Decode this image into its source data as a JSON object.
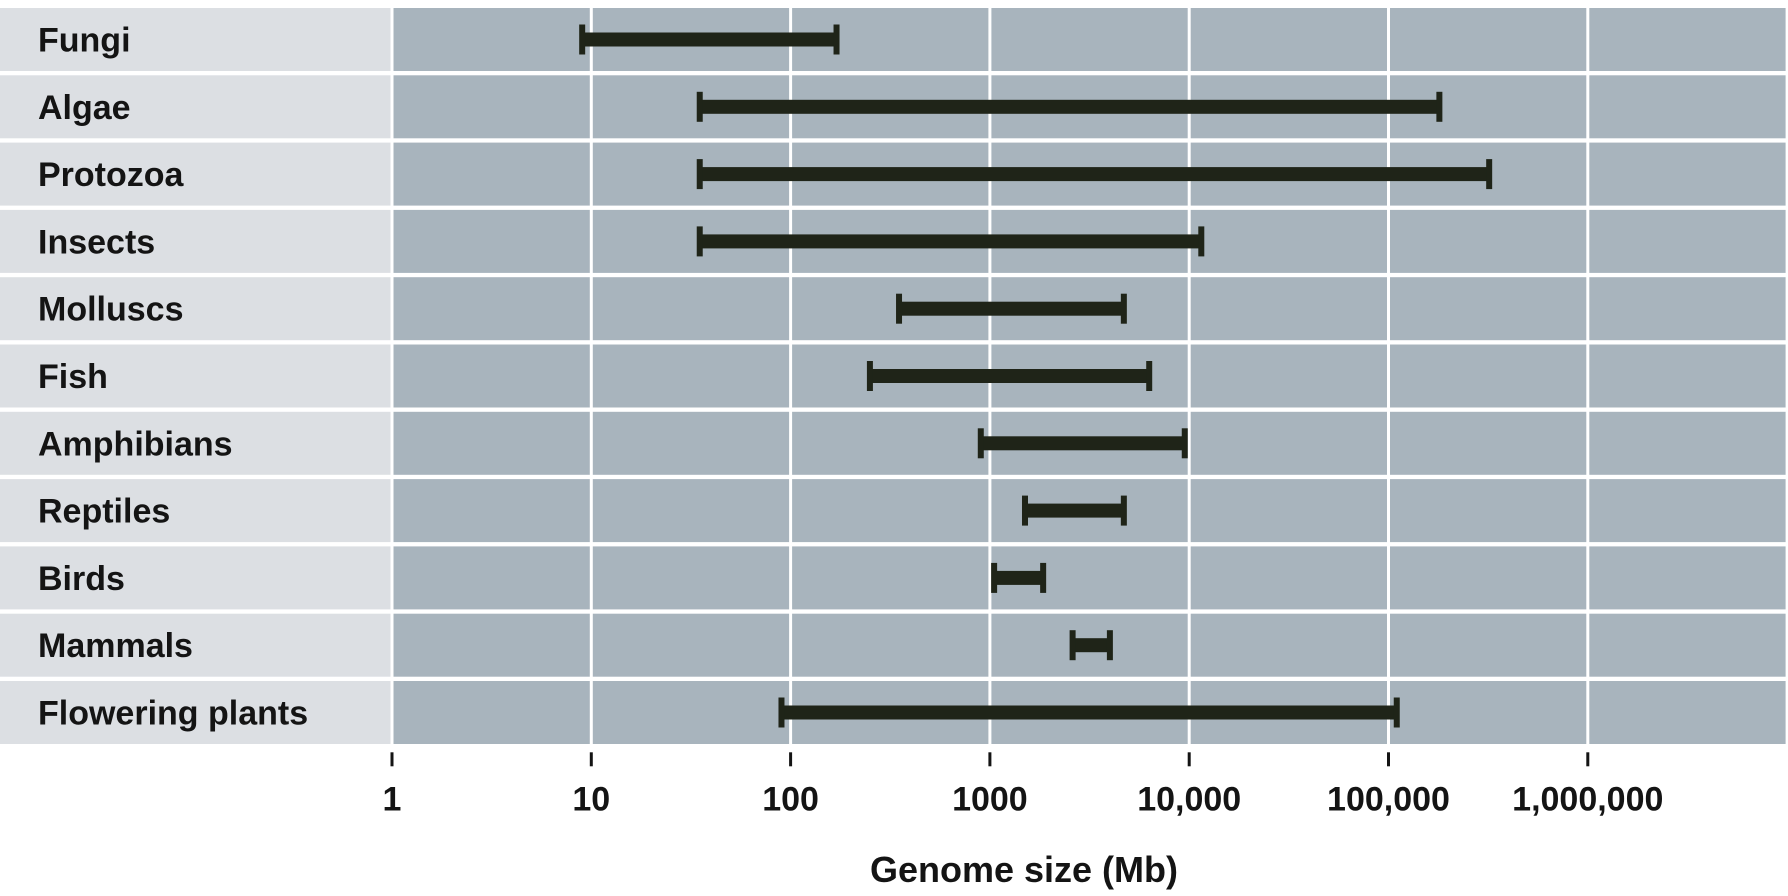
{
  "chart_data": {
    "type": "range-bar",
    "scale": "log",
    "xlabel": "Genome size (Mb)",
    "xlim": [
      1,
      3000000
    ],
    "grid": true,
    "colors": {
      "label_band": "#dcdfe3",
      "plot_band": "#a8b4bd",
      "grid": "#ffffff",
      "bar": "#1f2418"
    },
    "x_ticks": [
      {
        "value": 1,
        "label": "1"
      },
      {
        "value": 10,
        "label": "10"
      },
      {
        "value": 100,
        "label": "100"
      },
      {
        "value": 1000,
        "label": "1000"
      },
      {
        "value": 10000,
        "label": "10,000"
      },
      {
        "value": 100000,
        "label": "100,000"
      },
      {
        "value": 1000000,
        "label": "1,000,000"
      }
    ],
    "categories": [
      "Fungi",
      "Algae",
      "Protozoa",
      "Insects",
      "Molluscs",
      "Fish",
      "Amphibians",
      "Reptiles",
      "Birds",
      "Mammals",
      "Flowering plants"
    ],
    "ranges": [
      {
        "min": 9,
        "max": 170
      },
      {
        "min": 35,
        "max": 180000
      },
      {
        "min": 35,
        "max": 320000
      },
      {
        "min": 35,
        "max": 11500
      },
      {
        "min": 350,
        "max": 4700
      },
      {
        "min": 250,
        "max": 6300
      },
      {
        "min": 900,
        "max": 9500
      },
      {
        "min": 1500,
        "max": 4700
      },
      {
        "min": 1050,
        "max": 1850
      },
      {
        "min": 2600,
        "max": 4000
      },
      {
        "min": 90,
        "max": 110000
      }
    ]
  }
}
